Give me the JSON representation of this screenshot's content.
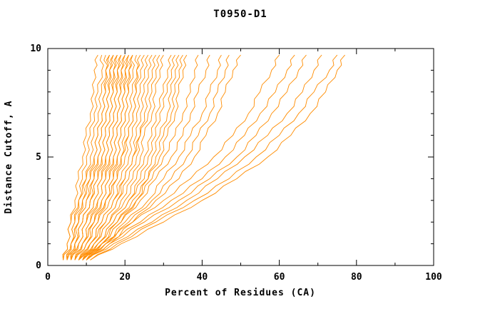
{
  "chart_data": {
    "type": "line",
    "title": "T0950-D1",
    "xlabel": "Percent of Residues (CA)",
    "ylabel": "Distance Cutoff, A",
    "xlim": [
      0,
      100
    ],
    "ylim": [
      0,
      10
    ],
    "xticks_major": [
      0,
      20,
      40,
      60,
      80,
      100
    ],
    "xticks_minor": [
      10,
      30,
      50,
      70,
      90
    ],
    "yticks_major": [
      0,
      5,
      10
    ],
    "yticks_minor": [
      1,
      2,
      3,
      4,
      6,
      7,
      8,
      9
    ],
    "grid": false,
    "legend": "none",
    "line_color": "#ff8c00",
    "axis_color": "#000000",
    "y": [
      0.25,
      1,
      2,
      3,
      4,
      5,
      6,
      7,
      8,
      9,
      9.7
    ],
    "series_x": [
      [
        4,
        5,
        6,
        7,
        8,
        9,
        10,
        11,
        12,
        12,
        13
      ],
      [
        4,
        5,
        6,
        8,
        9,
        10,
        11,
        12,
        13,
        14,
        14
      ],
      [
        5,
        6,
        7,
        8,
        10,
        11,
        12,
        13,
        14,
        15,
        15
      ],
      [
        4,
        6,
        7,
        9,
        10,
        12,
        13,
        14,
        15,
        15,
        16
      ],
      [
        5,
        6,
        8,
        9,
        11,
        12,
        13,
        14,
        15,
        16,
        16
      ],
      [
        5,
        7,
        8,
        10,
        11,
        13,
        14,
        15,
        16,
        16,
        17
      ],
      [
        4,
        6,
        8,
        10,
        12,
        13,
        14,
        15,
        16,
        17,
        17
      ],
      [
        5,
        7,
        9,
        11,
        12,
        14,
        15,
        16,
        17,
        17,
        18
      ],
      [
        6,
        7,
        9,
        11,
        13,
        14,
        15,
        16,
        17,
        18,
        18
      ],
      [
        5,
        7,
        9,
        11,
        13,
        15,
        16,
        17,
        18,
        18,
        19
      ],
      [
        6,
        8,
        10,
        12,
        14,
        15,
        16,
        17,
        18,
        19,
        19
      ],
      [
        5,
        8,
        10,
        12,
        14,
        16,
        17,
        18,
        19,
        19,
        20
      ],
      [
        6,
        8,
        10,
        13,
        15,
        16,
        17,
        18,
        19,
        20,
        20
      ],
      [
        6,
        9,
        11,
        13,
        15,
        17,
        18,
        19,
        20,
        20,
        21
      ],
      [
        7,
        9,
        11,
        14,
        16,
        17,
        18,
        19,
        20,
        21,
        21
      ],
      [
        6,
        9,
        12,
        14,
        16,
        18,
        19,
        20,
        21,
        21,
        22
      ],
      [
        7,
        10,
        12,
        15,
        17,
        18,
        19,
        20,
        21,
        22,
        22
      ],
      [
        6,
        9,
        12,
        15,
        17,
        19,
        20,
        21,
        22,
        23,
        23
      ],
      [
        7,
        10,
        13,
        15,
        18,
        19,
        21,
        22,
        23,
        23,
        24
      ],
      [
        7,
        10,
        13,
        16,
        18,
        20,
        21,
        22,
        23,
        24,
        25
      ],
      [
        8,
        11,
        14,
        17,
        19,
        21,
        22,
        23,
        24,
        25,
        26
      ],
      [
        7,
        11,
        14,
        17,
        20,
        22,
        23,
        24,
        25,
        26,
        27
      ],
      [
        8,
        11,
        15,
        18,
        20,
        22,
        24,
        25,
        26,
        27,
        28
      ],
      [
        8,
        12,
        15,
        18,
        21,
        23,
        24,
        26,
        27,
        28,
        29
      ],
      [
        9,
        12,
        16,
        19,
        22,
        24,
        25,
        27,
        28,
        29,
        30
      ],
      [
        8,
        12,
        16,
        20,
        23,
        25,
        27,
        28,
        30,
        31,
        32
      ],
      [
        9,
        13,
        17,
        21,
        24,
        26,
        28,
        29,
        31,
        32,
        33
      ],
      [
        9,
        13,
        17,
        21,
        25,
        27,
        29,
        31,
        32,
        33,
        34
      ],
      [
        10,
        14,
        18,
        22,
        26,
        28,
        30,
        32,
        33,
        34,
        35
      ],
      [
        9,
        14,
        19,
        23,
        26,
        29,
        31,
        33,
        34,
        35,
        36
      ],
      [
        8,
        13,
        18,
        23,
        27,
        30,
        33,
        35,
        37,
        38,
        39
      ],
      [
        9,
        14,
        19,
        24,
        28,
        32,
        35,
        37,
        39,
        41,
        42
      ],
      [
        9,
        15,
        20,
        26,
        30,
        34,
        37,
        40,
        42,
        44,
        45
      ],
      [
        10,
        15,
        21,
        27,
        32,
        36,
        39,
        42,
        44,
        46,
        47
      ],
      [
        10,
        16,
        22,
        28,
        34,
        38,
        41,
        44,
        46,
        48,
        50
      ],
      [
        8,
        14,
        22,
        30,
        37,
        43,
        48,
        52,
        55,
        58,
        60
      ],
      [
        9,
        15,
        24,
        32,
        40,
        46,
        51,
        55,
        59,
        62,
        64
      ],
      [
        10,
        16,
        25,
        34,
        42,
        49,
        54,
        58,
        62,
        65,
        67
      ],
      [
        10,
        17,
        27,
        36,
        44,
        51,
        57,
        62,
        66,
        69,
        71
      ],
      [
        11,
        18,
        28,
        38,
        47,
        54,
        60,
        65,
        69,
        73,
        75
      ],
      [
        11,
        19,
        30,
        40,
        49,
        57,
        63,
        68,
        72,
        75,
        77
      ]
    ]
  }
}
